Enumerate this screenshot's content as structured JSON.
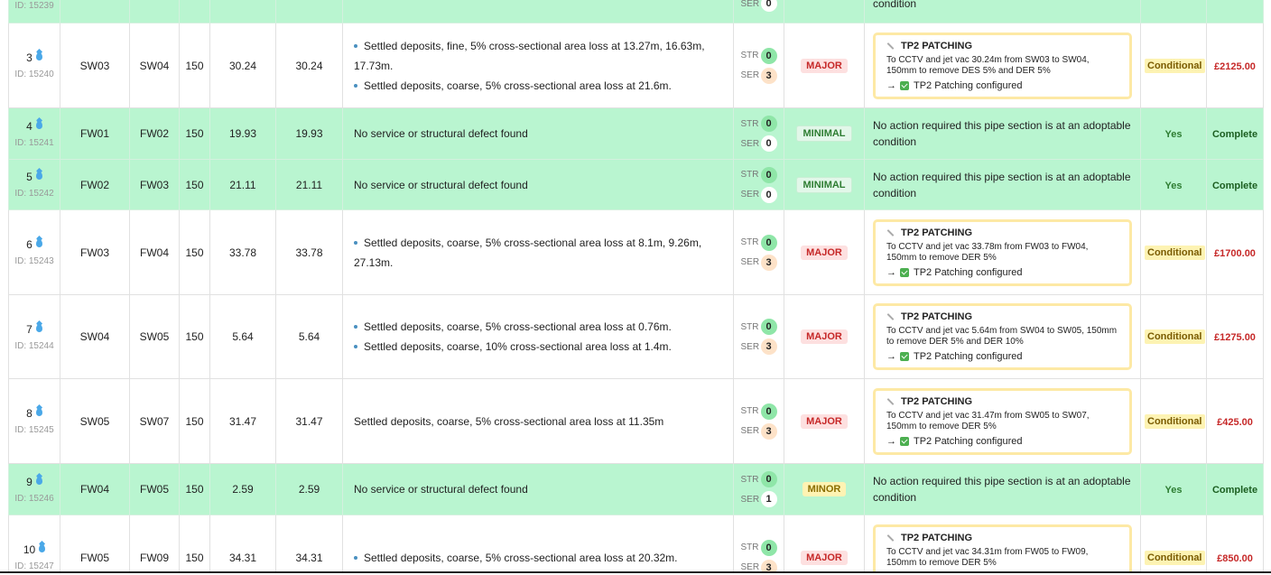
{
  "partial_row": {
    "id_label": "ID: 15239",
    "ser_label": "SER",
    "ser_value": "0",
    "action_tail": "condition"
  },
  "grade_labels": {
    "str": "STR",
    "ser": "SER"
  },
  "rows": [
    {
      "index": "3",
      "id_label": "ID: 15240",
      "start": "SW03",
      "finish": "SW04",
      "diameter": "150",
      "surveyed": "30.24",
      "total": "30.24",
      "observations": [
        "Settled deposits, fine, 5% cross-sectional area loss at 13.27m, 16.63m, 17.73m.",
        "Settled deposits, coarse, 5% cross-sectional area loss at 21.6m."
      ],
      "str": "0",
      "ser": "3",
      "severity": "MAJOR",
      "card_title": "TP2 PATCHING",
      "card_text": "To CCTV and jet vac 30.24m from SW03 to SW04, 150mm to remove DES 5% and DER 5%",
      "card_arrow": "→",
      "card_status": "TP2 Patching configured",
      "adoptable": "Conditional",
      "cost": "£2125.00"
    },
    {
      "index": "4",
      "id_label": "ID: 15241",
      "start": "FW01",
      "finish": "FW02",
      "diameter": "150",
      "surveyed": "19.93",
      "total": "19.93",
      "observation_text": "No service or structural defect found",
      "str": "0",
      "ser": "0",
      "severity": "MINIMAL",
      "action_text": "No action required this pipe section is at an adoptable condition",
      "adoptable": "Yes",
      "status": "Complete"
    },
    {
      "index": "5",
      "id_label": "ID: 15242",
      "start": "FW02",
      "finish": "FW03",
      "diameter": "150",
      "surveyed": "21.11",
      "total": "21.11",
      "observation_text": "No service or structural defect found",
      "str": "0",
      "ser": "0",
      "severity": "MINIMAL",
      "action_text": "No action required this pipe section is at an adoptable condition",
      "adoptable": "Yes",
      "status": "Complete"
    },
    {
      "index": "6",
      "id_label": "ID: 15243",
      "start": "FW03",
      "finish": "FW04",
      "diameter": "150",
      "surveyed": "33.78",
      "total": "33.78",
      "observations": [
        "Settled deposits, coarse, 5% cross-sectional area loss at 8.1m, 9.26m, 27.13m."
      ],
      "str": "0",
      "ser": "3",
      "severity": "MAJOR",
      "card_title": "TP2 PATCHING",
      "card_text": "To CCTV and jet vac 33.78m from FW03 to FW04, 150mm to remove DER 5%",
      "card_arrow": "→",
      "card_status": "TP2 Patching configured",
      "adoptable": "Conditional",
      "cost": "£1700.00"
    },
    {
      "index": "7",
      "id_label": "ID: 15244",
      "start": "SW04",
      "finish": "SW05",
      "diameter": "150",
      "surveyed": "5.64",
      "total": "5.64",
      "observations": [
        "Settled deposits, coarse, 5% cross-sectional area loss at 0.76m.",
        "Settled deposits, coarse, 10% cross-sectional area loss at 1.4m."
      ],
      "str": "0",
      "ser": "3",
      "severity": "MAJOR",
      "card_title": "TP2 PATCHING",
      "card_text": "To CCTV and jet vac 5.64m from SW04 to SW05, 150mm to remove DER 5% and DER 10%",
      "card_arrow": "→",
      "card_status": "TP2 Patching configured",
      "adoptable": "Conditional",
      "cost": "£1275.00"
    },
    {
      "index": "8",
      "id_label": "ID: 15245",
      "start": "SW05",
      "finish": "SW07",
      "diameter": "150",
      "surveyed": "31.47",
      "total": "31.47",
      "observation_text": "Settled deposits, coarse, 5% cross-sectional area loss at 11.35m",
      "str": "0",
      "ser": "3",
      "severity": "MAJOR",
      "card_title": "TP2 PATCHING",
      "card_text": "To CCTV and jet vac 31.47m from SW05 to SW07, 150mm to remove DER 5%",
      "card_arrow": "→",
      "card_status": "TP2 Patching configured",
      "adoptable": "Conditional",
      "cost": "£425.00"
    },
    {
      "index": "9",
      "id_label": "ID: 15246",
      "start": "FW04",
      "finish": "FW05",
      "diameter": "150",
      "surveyed": "2.59",
      "total": "2.59",
      "observation_text": "No service or structural defect found",
      "str": "0",
      "ser": "1",
      "severity": "MINOR",
      "action_text": "No action required this pipe section is at an adoptable condition",
      "adoptable": "Yes",
      "status": "Complete"
    },
    {
      "index": "10",
      "id_label": "ID: 15247",
      "start": "FW05",
      "finish": "FW09",
      "diameter": "150",
      "surveyed": "34.31",
      "total": "34.31",
      "observations": [
        "Settled deposits, coarse, 5% cross-sectional area loss at 20.32m."
      ],
      "str": "0",
      "ser": "3",
      "severity": "MAJOR",
      "card_title": "TP2 PATCHING",
      "card_text": "To CCTV and jet vac 34.31m from FW05 to FW09, 150mm to remove DER 5%",
      "card_arrow": "→",
      "card_status": "TP2 Patching configured",
      "adoptable": "Conditional",
      "cost": "£850.00"
    }
  ],
  "colors": {
    "pass_row": "#b9f5d0",
    "major": "#c62828",
    "minimal": "#2e7d32",
    "minor": "#8a6d00",
    "card_border": "#fde9a5"
  }
}
